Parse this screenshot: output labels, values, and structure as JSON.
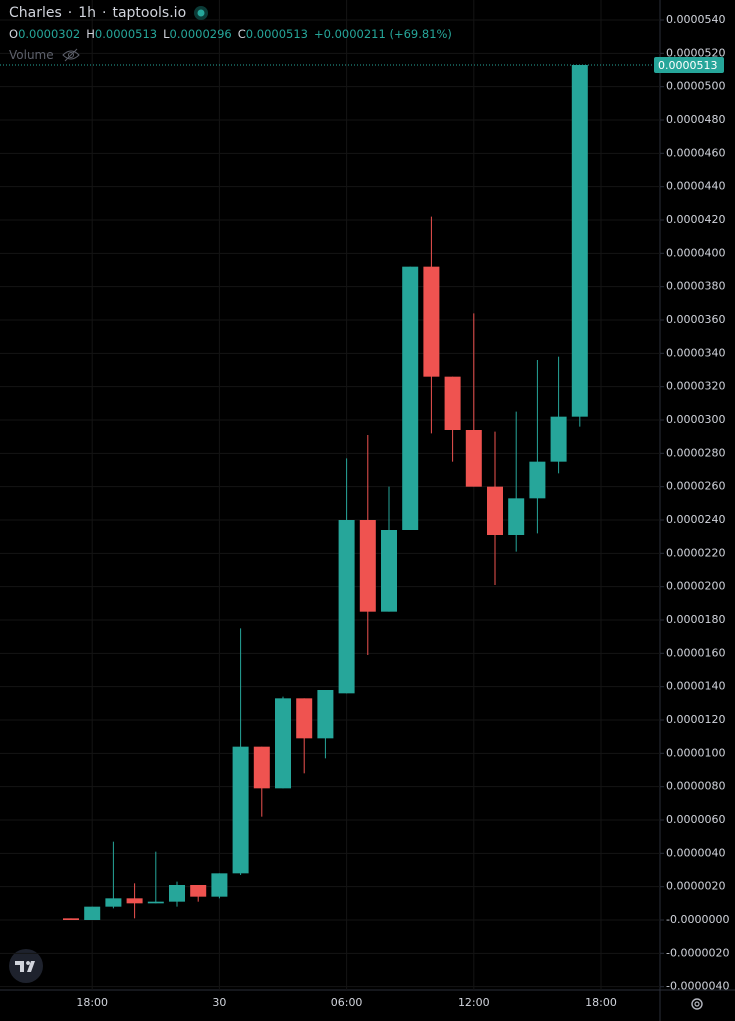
{
  "chart_data": {
    "type": "candlestick",
    "header": {
      "symbol": "Charles",
      "interval": "1h",
      "source": "taptools.io"
    },
    "ohlc_legend": [
      {
        "label": "O",
        "value": "0.0000302"
      },
      {
        "label": "H",
        "value": "0.0000513"
      },
      {
        "label": "L",
        "value": "0.0000296"
      },
      {
        "label": "C",
        "value": "0.0000513"
      }
    ],
    "change": "+0.0000211 (+69.81%)",
    "volume_label": "Volume",
    "categories": [
      null,
      "18:00",
      null,
      null,
      null,
      null,
      null,
      "30",
      null,
      null,
      null,
      null,
      null,
      "06:00",
      null,
      null,
      null,
      null,
      null,
      "12:00",
      null,
      null,
      null,
      null,
      null,
      "18:00"
    ],
    "open": [
      1e-07,
      0.0,
      8e-07,
      1.3e-06,
      1e-06,
      1.1e-06,
      2.1e-06,
      1.4e-06,
      2.8e-06,
      1.04e-05,
      7.9e-06,
      1.33e-05,
      1.09e-05,
      1.36e-05,
      2.4e-05,
      1.85e-05,
      2.34e-05,
      3.92e-05,
      3.26e-05,
      2.94e-05,
      2.6e-05,
      2.31e-05,
      2.53e-05,
      2.75e-05,
      3.02e-05,
      null
    ],
    "high": [
      1e-07,
      8e-07,
      4.7e-06,
      2.2e-06,
      4.1e-06,
      2.3e-06,
      2.1e-06,
      2.8e-06,
      1.75e-05,
      1.04e-05,
      1.34e-05,
      1.33e-05,
      1.38e-05,
      2.77e-05,
      2.91e-05,
      2.6e-05,
      3.92e-05,
      4.22e-05,
      3.26e-05,
      3.64e-05,
      2.93e-05,
      3.05e-05,
      3.36e-05,
      3.38e-05,
      5.13e-05,
      null
    ],
    "low": [
      0.0,
      0.0,
      7e-07,
      1e-07,
      1e-06,
      8e-07,
      1.1e-06,
      1.3e-06,
      2.7e-06,
      6.2e-06,
      7.9e-06,
      8.8e-06,
      9.7e-06,
      1.36e-05,
      1.59e-05,
      1.85e-05,
      2.34e-05,
      2.92e-05,
      2.75e-05,
      2.6e-05,
      2.01e-05,
      2.21e-05,
      2.32e-05,
      2.68e-05,
      2.96e-05,
      null
    ],
    "close": [
      0.0,
      8e-07,
      1.3e-06,
      1e-06,
      1.1e-06,
      2.1e-06,
      1.4e-06,
      2.8e-06,
      1.04e-05,
      7.9e-06,
      1.33e-05,
      1.09e-05,
      1.38e-05,
      2.4e-05,
      1.85e-05,
      2.34e-05,
      3.92e-05,
      3.26e-05,
      2.94e-05,
      2.6e-05,
      2.31e-05,
      2.53e-05,
      2.75e-05,
      3.02e-05,
      5.13e-05,
      null
    ],
    "up_color": "#26a69a",
    "down_color": "#ef5350",
    "ylim": [
      -4.2e-06,
      5.52e-05
    ],
    "yticks": [
      {
        "value": -4e-06,
        "label": "-0.0000040"
      },
      {
        "value": -2e-06,
        "label": "-0.0000020"
      },
      {
        "value": 0,
        "label": "-0.0000000"
      },
      {
        "value": 2e-06,
        "label": "0.0000020"
      },
      {
        "value": 4e-06,
        "label": "0.0000040"
      },
      {
        "value": 6e-06,
        "label": "0.0000060"
      },
      {
        "value": 8e-06,
        "label": "0.0000080"
      },
      {
        "value": 1e-05,
        "label": "0.0000100"
      },
      {
        "value": 1.2e-05,
        "label": "0.0000120"
      },
      {
        "value": 1.4e-05,
        "label": "0.0000140"
      },
      {
        "value": 1.6e-05,
        "label": "0.0000160"
      },
      {
        "value": 1.8e-05,
        "label": "0.0000180"
      },
      {
        "value": 2e-05,
        "label": "0.0000200"
      },
      {
        "value": 2.2e-05,
        "label": "0.0000220"
      },
      {
        "value": 2.4e-05,
        "label": "0.0000240"
      },
      {
        "value": 2.6e-05,
        "label": "0.0000260"
      },
      {
        "value": 2.8e-05,
        "label": "0.0000280"
      },
      {
        "value": 3e-05,
        "label": "0.0000300"
      },
      {
        "value": 3.2e-05,
        "label": "0.0000320"
      },
      {
        "value": 3.4e-05,
        "label": "0.0000340"
      },
      {
        "value": 3.6e-05,
        "label": "0.0000360"
      },
      {
        "value": 3.8e-05,
        "label": "0.0000380"
      },
      {
        "value": 4e-05,
        "label": "0.0000400"
      },
      {
        "value": 4.2e-05,
        "label": "0.0000420"
      },
      {
        "value": 4.4e-05,
        "label": "0.0000440"
      },
      {
        "value": 4.6e-05,
        "label": "0.0000460"
      },
      {
        "value": 4.8e-05,
        "label": "0.0000480"
      },
      {
        "value": 5e-05,
        "label": "0.0000500"
      },
      {
        "value": 5.2e-05,
        "label": "0.0000520"
      },
      {
        "value": 5.4e-05,
        "label": "0.0000540"
      }
    ],
    "last_price": {
      "value": 5.13e-05,
      "label": "0.0000513"
    },
    "grid": true
  }
}
